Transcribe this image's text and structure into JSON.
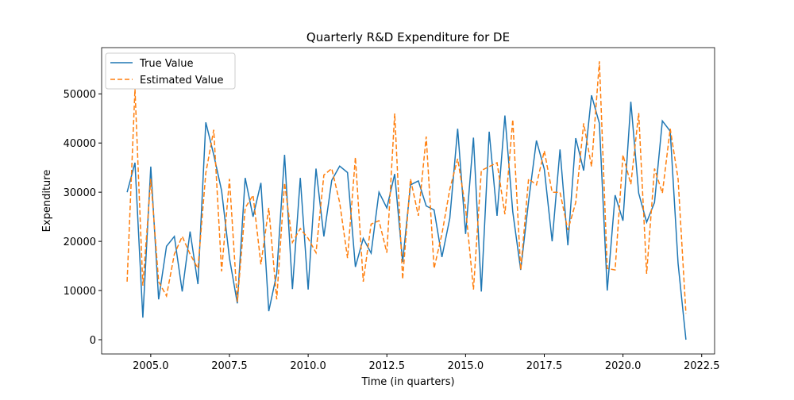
{
  "chart_data": {
    "type": "line",
    "title": "Quarterly R&D Expenditure for DE",
    "xlabel": "Time (in quarters)",
    "ylabel": "Expenditure",
    "x": [
      2004.25,
      2004.5,
      2004.75,
      2005,
      2005.25,
      2005.5,
      2005.75,
      2006,
      2006.25,
      2006.5,
      2006.75,
      2007,
      2007.25,
      2007.5,
      2007.75,
      2008,
      2008.25,
      2008.5,
      2008.75,
      2009,
      2009.25,
      2009.5,
      2009.75,
      2010,
      2010.25,
      2010.5,
      2010.75,
      2011,
      2011.25,
      2011.5,
      2011.75,
      2012,
      2012.25,
      2012.5,
      2012.75,
      2013,
      2013.25,
      2013.5,
      2013.75,
      2014,
      2014.25,
      2014.5,
      2014.75,
      2015,
      2015.25,
      2015.5,
      2015.75,
      2016,
      2016.25,
      2016.5,
      2016.75,
      2017,
      2017.25,
      2017.5,
      2017.75,
      2018,
      2018.25,
      2018.5,
      2018.75,
      2019,
      2019.25,
      2019.5,
      2019.75,
      2020,
      2020.25,
      2020.5,
      2020.75,
      2021,
      2021.25,
      2021.5,
      2021.75,
      2022
    ],
    "series": [
      {
        "name": "True Value",
        "color": "#1f77b4",
        "dash": "none",
        "values": [
          30000,
          36000,
          4500,
          35200,
          8200,
          19000,
          21000,
          9800,
          22000,
          11300,
          44200,
          37600,
          30300,
          16600,
          7400,
          32900,
          25000,
          31900,
          5800,
          13400,
          37600,
          10300,
          32900,
          10200,
          34800,
          21000,
          32400,
          35300,
          34000,
          14800,
          20600,
          17600,
          30000,
          26800,
          33700,
          15800,
          31500,
          32300,
          27200,
          26400,
          16800,
          24700,
          42900,
          21500,
          41100,
          9800,
          42300,
          25200,
          45600,
          26000,
          14200,
          28100,
          40500,
          34700,
          20000,
          38700,
          19200,
          41000,
          34400,
          49700,
          44000,
          10000,
          29400,
          24200,
          48400,
          29800,
          23900,
          27900,
          44500,
          42400,
          15500,
          0
        ]
      },
      {
        "name": "Estimated Value",
        "color": "#ff7f0e",
        "dash": "6,3",
        "values": [
          11800,
          51000,
          11000,
          32700,
          11800,
          8900,
          17400,
          21000,
          17400,
          14500,
          33900,
          42700,
          13900,
          32700,
          7700,
          26800,
          29400,
          15300,
          26800,
          8200,
          31900,
          19800,
          22600,
          20600,
          17700,
          33500,
          34800,
          27900,
          16600,
          37100,
          11800,
          23500,
          24200,
          17700,
          46000,
          12300,
          32700,
          25200,
          41300,
          14500,
          21500,
          30600,
          36800,
          26800,
          10200,
          34400,
          35200,
          36000,
          25500,
          44800,
          14200,
          32700,
          31500,
          38400,
          30000,
          30000,
          22300,
          27900,
          44000,
          35200,
          56600,
          14500,
          14200,
          37600,
          31600,
          46100,
          13400,
          34800,
          29800,
          42900,
          32700,
          5300
        ]
      }
    ],
    "xlim": [
      2003.44,
      2022.91
    ],
    "xticks": [
      {
        "value": 2005,
        "label": "2005.0"
      },
      {
        "value": 2007.5,
        "label": "2007.5"
      },
      {
        "value": 2010,
        "label": "2010.0"
      },
      {
        "value": 2012.5,
        "label": "2012.5"
      },
      {
        "value": 2015,
        "label": "2015.0"
      },
      {
        "value": 2017.5,
        "label": "2017.5"
      },
      {
        "value": 2020,
        "label": "2020.0"
      },
      {
        "value": 2022.5,
        "label": "2022.5"
      }
    ],
    "ylim": [
      -2900,
      59400
    ],
    "yticks": [
      0,
      10000,
      20000,
      30000,
      40000,
      50000
    ],
    "legend": "upper left"
  }
}
